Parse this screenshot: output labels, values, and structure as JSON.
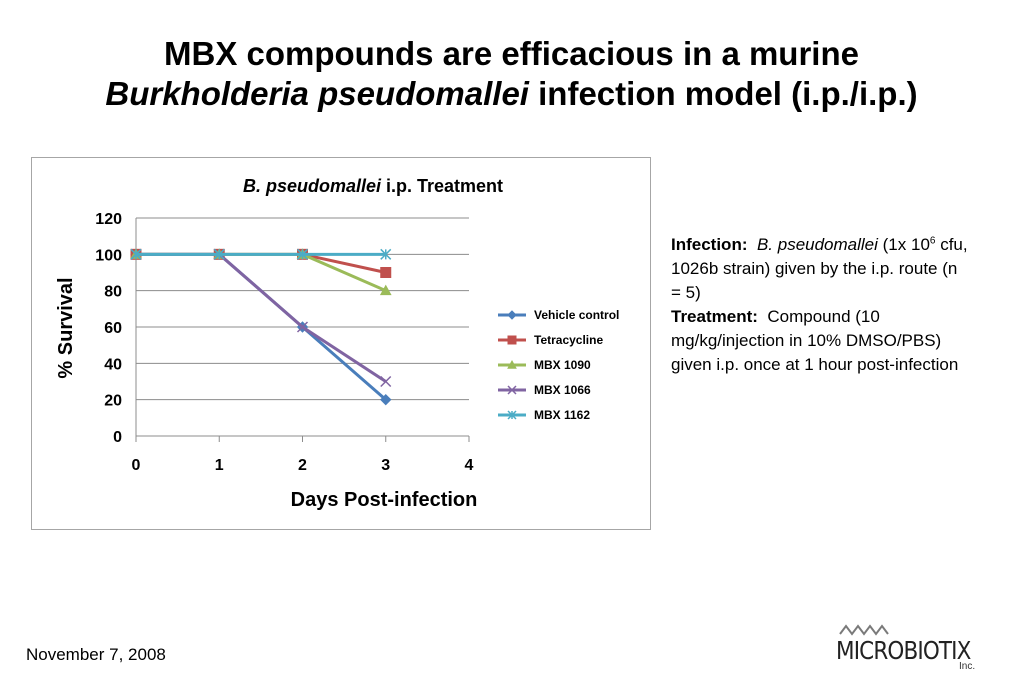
{
  "slide": {
    "title_line1": "MBX compounds are efficacious in a murine",
    "title_line2_italic": "Burkholderia pseudomallei",
    "title_line2_rest": " infection model (i.p./i.p.)"
  },
  "chart_data": {
    "type": "line",
    "title_italic": "B. pseudomallei",
    "title_rest": " i.p. Treatment",
    "xlabel": "Days Post-infection",
    "ylabel": "% Survival",
    "xlim": [
      0,
      4
    ],
    "ylim": [
      0,
      120
    ],
    "x_ticks": [
      "0",
      "1",
      "2",
      "3",
      "4"
    ],
    "y_ticks": [
      "0",
      "20",
      "40",
      "60",
      "80",
      "100",
      "120"
    ],
    "x": [
      0,
      1,
      2,
      3
    ],
    "grid": "horizontal",
    "legend_position": "right",
    "series": [
      {
        "name": "Vehicle control",
        "values": [
          100,
          100,
          60,
          20
        ],
        "color": "#4a7ebb",
        "marker": "diamond"
      },
      {
        "name": "Tetracycline",
        "values": [
          100,
          100,
          100,
          90
        ],
        "color": "#c0504d",
        "marker": "square"
      },
      {
        "name": "MBX 1090",
        "values": [
          100,
          100,
          100,
          80
        ],
        "color": "#9bbb59",
        "marker": "triangle"
      },
      {
        "name": "MBX 1066",
        "values": [
          100,
          100,
          60,
          30
        ],
        "color": "#8064a2",
        "marker": "x"
      },
      {
        "name": "MBX 1162",
        "values": [
          100,
          100,
          100,
          100
        ],
        "color": "#4bacc6",
        "marker": "star"
      }
    ]
  },
  "sidebar": {
    "infection_label": "Infection:",
    "infection_species": "B. pseudomallei",
    "infection_text_a": " (1x 10",
    "infection_sup": "6",
    "infection_text_b": " cfu, 1026b strain) given by the i.p. route (n = 5)",
    "treatment_label": "Treatment:",
    "treatment_text": "Compound (10 mg/kg/injection in 10% DMSO/PBS) given i.p. once at 1 hour post-infection"
  },
  "footer": {
    "date": "November 7, 2008",
    "logo_name": "MICROBIOTIX",
    "logo_suffix": "Inc."
  }
}
